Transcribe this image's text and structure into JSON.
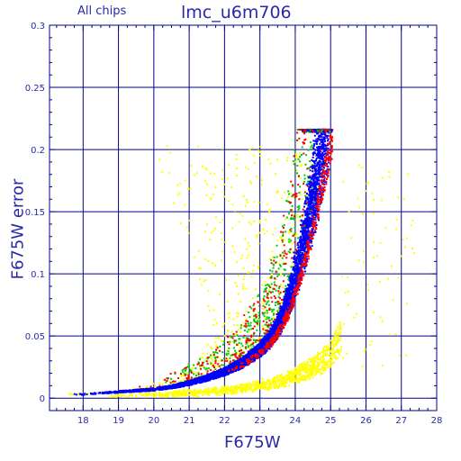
{
  "chart_data": {
    "type": "scatter",
    "title": "lmc_u6m706",
    "subtitle": "All chips",
    "xlabel": "F675W",
    "ylabel": "F675W error",
    "xlim": [
      17.05,
      28.0
    ],
    "ylim": [
      -0.01,
      0.3
    ],
    "xticks": [
      18,
      19,
      20,
      21,
      22,
      23,
      24,
      25,
      26,
      27,
      28
    ],
    "yticks": [
      0,
      0.05,
      0.1,
      0.15,
      0.2,
      0.25,
      0.3
    ],
    "ytick_labels": [
      "0",
      "0.05",
      "0.1",
      "0.15",
      "0.2",
      "0.25",
      "0.3"
    ],
    "grid": true,
    "colors": {
      "axes": "#00008b",
      "text": "#2a2aa8",
      "series_blue": "#0000ff",
      "series_red": "#ff0000",
      "series_green": "#00cc00",
      "series_yellow": "#ffff00"
    },
    "series": [
      {
        "color": "blue",
        "description": "main error-magnitude locus",
        "x": [
          17.5,
          18.0,
          18.5,
          19.0,
          19.5,
          20.0,
          20.5,
          21.0,
          21.5,
          22.0,
          22.5,
          23.0,
          23.25,
          23.5,
          23.75,
          24.0,
          24.25,
          24.5,
          24.75,
          25.0
        ],
        "y": [
          0.003,
          0.003,
          0.004,
          0.005,
          0.006,
          0.007,
          0.009,
          0.012,
          0.016,
          0.021,
          0.028,
          0.038,
          0.045,
          0.055,
          0.07,
          0.09,
          0.115,
          0.145,
          0.18,
          0.215
        ],
        "x_spread": 0.35,
        "max_error": 0.216
      },
      {
        "color": "red",
        "description": "scattered points above locus",
        "x_range": [
          19.5,
          25.0
        ]
      },
      {
        "color": "green",
        "description": "scattered points above locus",
        "x_range": [
          20.0,
          24.6
        ]
      },
      {
        "color": "yellow",
        "description": "lower sequence plus scattered outliers",
        "x": [
          19.0,
          20.0,
          21.0,
          22.0,
          23.0,
          23.5,
          24.0,
          24.5,
          25.0,
          25.3
        ],
        "y": [
          0.003,
          0.003,
          0.004,
          0.006,
          0.01,
          0.013,
          0.018,
          0.025,
          0.035,
          0.05
        ],
        "outlier_x_range": [
          18.5,
          27.3
        ]
      }
    ]
  }
}
